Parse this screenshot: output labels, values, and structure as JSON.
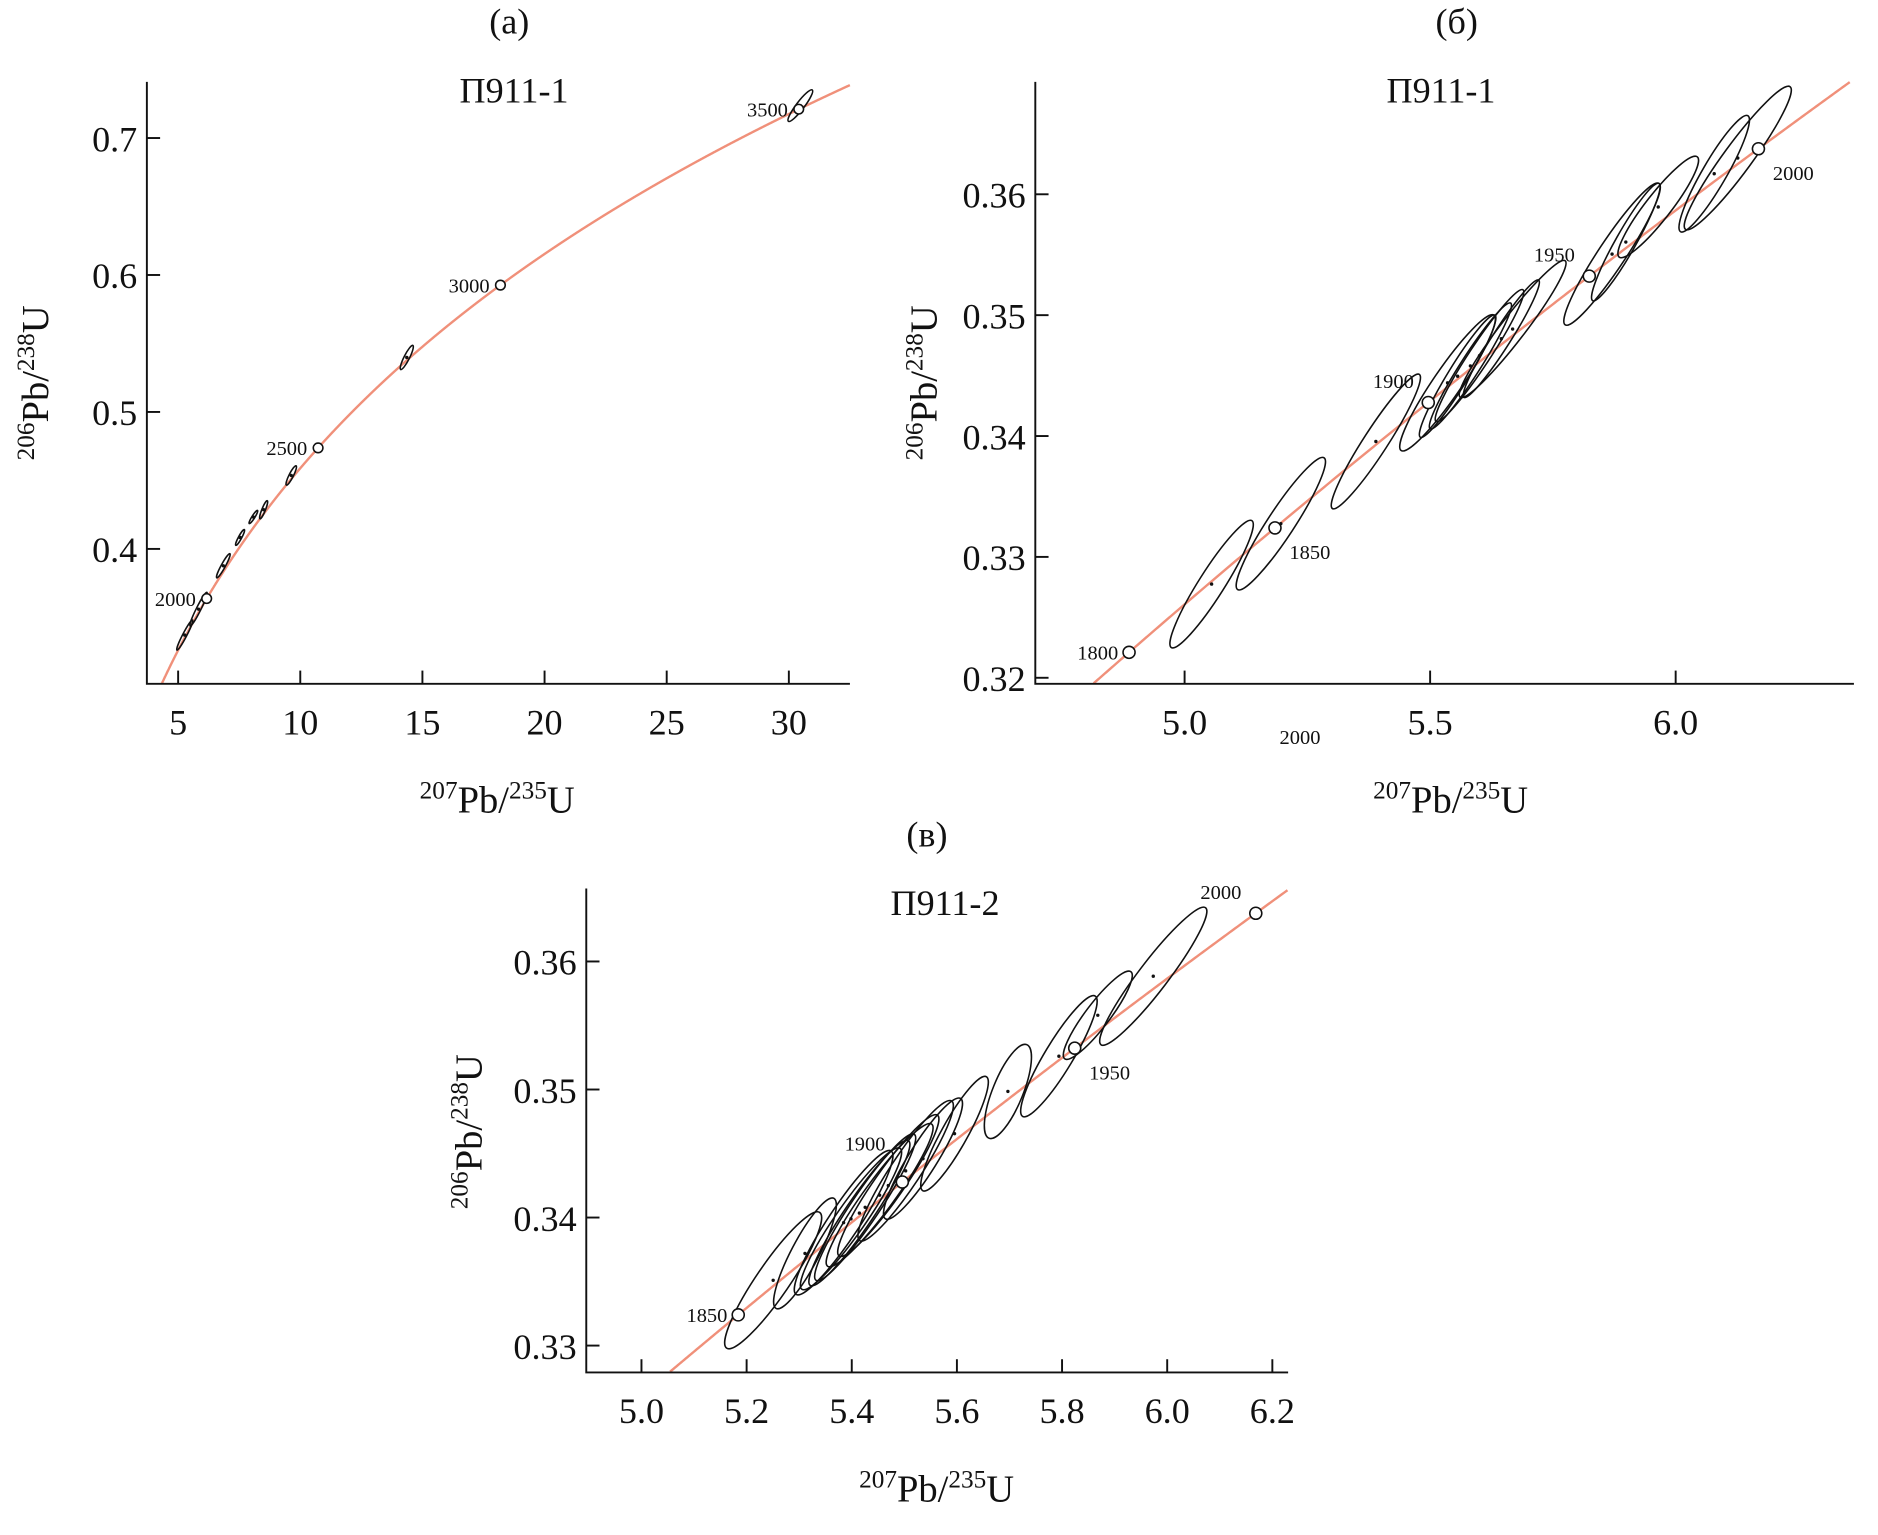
{
  "colors": {
    "concordia": "#f0907a",
    "ellipse": "#111111"
  },
  "chart_data": [
    {
      "type": "scatter",
      "panel_label": "(a)",
      "title": "П911-1",
      "xlabel": {
        "sup1": "207",
        "main1": "Pb/",
        "sup2": "235",
        "main2": "U"
      },
      "ylabel": {
        "sup1": "206",
        "main1": "Pb/",
        "sup2": "238",
        "main2": "U"
      },
      "xlim": [
        3.72,
        32.5
      ],
      "ylim": [
        0.3015,
        0.741
      ],
      "xticks": [
        {
          "v": 5,
          "label": "5"
        },
        {
          "v": 10,
          "label": "10"
        },
        {
          "v": 15,
          "label": "15"
        },
        {
          "v": 20,
          "label": "20"
        },
        {
          "v": 25,
          "label": "25"
        },
        {
          "v": 30,
          "label": "30"
        }
      ],
      "yticks": [
        {
          "v": 0.4,
          "label": "0.4"
        },
        {
          "v": 0.5,
          "label": "0.5"
        },
        {
          "v": 0.6,
          "label": "0.6"
        },
        {
          "v": 0.7,
          "label": "0.7"
        }
      ],
      "age_markers": [
        {
          "age": 2000,
          "label": "2000",
          "side": "left"
        },
        {
          "age": 2500,
          "label": "2500",
          "side": "left"
        },
        {
          "age": 3000,
          "label": "3000",
          "side": "left"
        },
        {
          "age": 3500,
          "label": "3500",
          "side": "left"
        }
      ],
      "ellipses": [
        {
          "x1": 4.95,
          "y1": 0.3261,
          "x2": 5.59,
          "y2": 0.3481,
          "ratio": 0.12
        },
        {
          "x1": 5.49,
          "y1": 0.3437,
          "x2": 6.18,
          "y2": 0.3683,
          "ratio": 0.12
        },
        {
          "x1": 6.58,
          "y1": 0.3789,
          "x2": 7.12,
          "y2": 0.3965,
          "ratio": 0.15
        },
        {
          "x1": 7.36,
          "y1": 0.4026,
          "x2": 7.71,
          "y2": 0.4141,
          "ratio": 0.18
        },
        {
          "x1": 7.91,
          "y1": 0.4185,
          "x2": 8.25,
          "y2": 0.4281,
          "ratio": 0.18
        },
        {
          "x1": 8.35,
          "y1": 0.422,
          "x2": 8.65,
          "y2": 0.4352,
          "ratio": 0.18
        },
        {
          "x1": 9.43,
          "y1": 0.4466,
          "x2": 9.83,
          "y2": 0.4607,
          "ratio": 0.2
        },
        {
          "x1": 14.11,
          "y1": 0.531,
          "x2": 14.61,
          "y2": 0.5486,
          "ratio": 0.2
        },
        {
          "x1": 29.98,
          "y1": 0.7122,
          "x2": 30.96,
          "y2": 0.7351,
          "ratio": 0.2
        }
      ]
    },
    {
      "type": "scatter",
      "panel_label": "(б)",
      "title": "П911-1",
      "xlabel": {
        "sup1": "207",
        "main1": "Pb/",
        "sup2": "235",
        "main2": "U"
      },
      "ylabel": {
        "sup1": "206",
        "main1": "Pb/",
        "sup2": "238",
        "main2": "U"
      },
      "xlim": [
        4.696,
        6.363
      ],
      "ylim": [
        0.3195,
        0.3693
      ],
      "xticks": [
        {
          "v": 5.0,
          "label": "5.0"
        },
        {
          "v": 5.5,
          "label": "5.5"
        },
        {
          "v": 6.0,
          "label": "6.0"
        }
      ],
      "yticks": [
        {
          "v": 0.32,
          "label": "0.32"
        },
        {
          "v": 0.33,
          "label": "0.33"
        },
        {
          "v": 0.34,
          "label": "0.34"
        },
        {
          "v": 0.35,
          "label": "0.35"
        },
        {
          "v": 0.36,
          "label": "0.36"
        }
      ],
      "stray_label": {
        "text": "2000",
        "x": 5.235
      },
      "age_markers": [
        {
          "age": 1800,
          "label": "1800",
          "side": "left"
        },
        {
          "age": 1850,
          "label": "1850",
          "side": "right-below"
        },
        {
          "age": 1900,
          "label": "1900",
          "side": "upper-left"
        },
        {
          "age": 1950,
          "label": "1950",
          "side": "upper-left"
        },
        {
          "age": 2000,
          "label": "2000",
          "side": "right-below"
        }
      ],
      "ellipses": [
        {
          "x1": 4.973,
          "y1": 0.3225,
          "x2": 5.137,
          "y2": 0.333,
          "ratio": 0.17
        },
        {
          "x1": 5.108,
          "y1": 0.3273,
          "x2": 5.284,
          "y2": 0.3382,
          "ratio": 0.17
        },
        {
          "x1": 5.301,
          "y1": 0.334,
          "x2": 5.478,
          "y2": 0.3451,
          "ratio": 0.15
        },
        {
          "x1": 5.441,
          "y1": 0.3388,
          "x2": 5.63,
          "y2": 0.35,
          "ratio": 0.17
        },
        {
          "x1": 5.48,
          "y1": 0.3399,
          "x2": 5.632,
          "y2": 0.35,
          "ratio": 0.14
        },
        {
          "x1": 5.5,
          "y1": 0.3406,
          "x2": 5.664,
          "y2": 0.351,
          "ratio": 0.13
        },
        {
          "x1": 5.512,
          "y1": 0.3412,
          "x2": 5.689,
          "y2": 0.3521,
          "ratio": 0.13
        },
        {
          "x1": 5.561,
          "y1": 0.3432,
          "x2": 5.775,
          "y2": 0.3545,
          "ratio": 0.14
        },
        {
          "x1": 5.569,
          "y1": 0.3432,
          "x2": 5.721,
          "y2": 0.3529,
          "ratio": 0.13
        },
        {
          "x1": 5.775,
          "y1": 0.3492,
          "x2": 5.966,
          "y2": 0.3609,
          "ratio": 0.16
        },
        {
          "x1": 5.831,
          "y1": 0.3512,
          "x2": 5.966,
          "y2": 0.3609,
          "ratio": 0.15
        },
        {
          "x1": 5.885,
          "y1": 0.3548,
          "x2": 6.044,
          "y2": 0.3631,
          "ratio": 0.2
        },
        {
          "x1": 6.01,
          "y1": 0.3569,
          "x2": 6.147,
          "y2": 0.3665,
          "ratio": 0.18
        },
        {
          "x1": 6.02,
          "y1": 0.3571,
          "x2": 6.233,
          "y2": 0.3689,
          "ratio": 0.16
        }
      ]
    },
    {
      "type": "scatter",
      "panel_label": "(в)",
      "title": "П911-2",
      "xlabel": {
        "sup1": "207",
        "main1": "Pb/",
        "sup2": "235",
        "main2": "U"
      },
      "ylabel": {
        "sup1": "206",
        "main1": "Pb/",
        "sup2": "238",
        "main2": "U"
      },
      "xlim": [
        4.895,
        6.23
      ],
      "ylim": [
        0.3279,
        0.3657
      ],
      "xticks": [
        {
          "v": 5.0,
          "label": "5.0"
        },
        {
          "v": 5.2,
          "label": "5.2"
        },
        {
          "v": 5.4,
          "label": "5.4"
        },
        {
          "v": 5.6,
          "label": "5.6"
        },
        {
          "v": 5.8,
          "label": "5.8"
        },
        {
          "v": 6.0,
          "label": "6.0"
        },
        {
          "v": 6.2,
          "label": "6.2"
        }
      ],
      "yticks": [
        {
          "v": 0.33,
          "label": "0.33"
        },
        {
          "v": 0.34,
          "label": "0.34"
        },
        {
          "v": 0.35,
          "label": "0.35"
        },
        {
          "v": 0.36,
          "label": "0.36"
        }
      ],
      "age_markers": [
        {
          "age": 1850,
          "label": "1850",
          "side": "left"
        },
        {
          "age": 1900,
          "label": "1900",
          "side": "far-upper-left"
        },
        {
          "age": 1950,
          "label": "1950",
          "side": "right-below"
        },
        {
          "age": 2000,
          "label": "2000",
          "side": "upper-left"
        }
      ],
      "ellipses": [
        {
          "x1": 5.162,
          "y1": 0.3298,
          "x2": 5.339,
          "y2": 0.3404,
          "ratio": 0.2
        },
        {
          "x1": 5.256,
          "y1": 0.3329,
          "x2": 5.366,
          "y2": 0.3415,
          "ratio": 0.22
        },
        {
          "x1": 5.294,
          "y1": 0.334,
          "x2": 5.475,
          "y2": 0.3452,
          "ratio": 0.18
        },
        {
          "x1": 5.305,
          "y1": 0.3344,
          "x2": 5.492,
          "y2": 0.3454,
          "ratio": 0.17
        },
        {
          "x1": 5.321,
          "y1": 0.3347,
          "x2": 5.508,
          "y2": 0.346,
          "ratio": 0.16
        },
        {
          "x1": 5.332,
          "y1": 0.3351,
          "x2": 5.519,
          "y2": 0.3465,
          "ratio": 0.16
        },
        {
          "x1": 5.354,
          "y1": 0.3362,
          "x2": 5.552,
          "y2": 0.3473,
          "ratio": 0.17
        },
        {
          "x1": 5.376,
          "y1": 0.337,
          "x2": 5.563,
          "y2": 0.348,
          "ratio": 0.17
        },
        {
          "x1": 5.415,
          "y1": 0.3382,
          "x2": 5.59,
          "y2": 0.3491,
          "ratio": 0.18
        },
        {
          "x1": 5.464,
          "y1": 0.3399,
          "x2": 5.607,
          "y2": 0.3493,
          "ratio": 0.2
        },
        {
          "x1": 5.535,
          "y1": 0.3421,
          "x2": 5.656,
          "y2": 0.351,
          "ratio": 0.2
        },
        {
          "x1": 5.661,
          "y1": 0.3462,
          "x2": 5.733,
          "y2": 0.3535,
          "ratio": 0.3
        },
        {
          "x1": 5.725,
          "y1": 0.3479,
          "x2": 5.863,
          "y2": 0.3573,
          "ratio": 0.2
        },
        {
          "x1": 5.805,
          "y1": 0.3524,
          "x2": 5.931,
          "y2": 0.3592,
          "ratio": 0.22
        },
        {
          "x1": 5.874,
          "y1": 0.3535,
          "x2": 6.073,
          "y2": 0.3642,
          "ratio": 0.17
        }
      ]
    }
  ]
}
